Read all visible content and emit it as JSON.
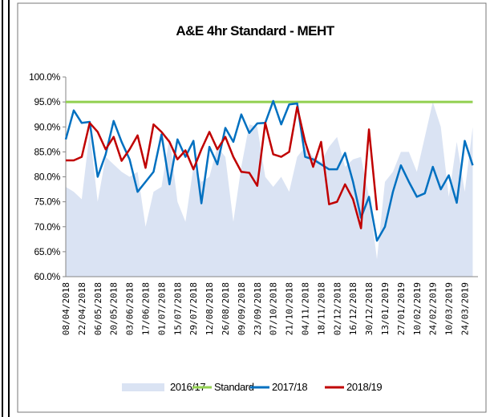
{
  "chart_data": {
    "type": "line",
    "title": "A&E 4hr Standard - MEHT",
    "categories": [
      "08/04/2018",
      null,
      "22/04/2018",
      null,
      "06/05/2018",
      null,
      "20/05/2018",
      null,
      "03/06/2018",
      null,
      "17/06/2018",
      null,
      "01/07/2018",
      null,
      "15/07/2018",
      null,
      "29/07/2018",
      null,
      "12/08/2018",
      null,
      "26/08/2018",
      null,
      "09/09/2018",
      null,
      "23/09/2018",
      null,
      "07/10/2018",
      null,
      "21/10/2018",
      null,
      "04/11/2018",
      null,
      "18/11/2018",
      null,
      "02/12/2018",
      null,
      "16/12/2018",
      null,
      "30/12/2018",
      null,
      "13/01/2019",
      null,
      "27/01/2019",
      null,
      "10/02/2019",
      null,
      "24/02/2019",
      null,
      "10/03/2019",
      null,
      "24/03/2019",
      null
    ],
    "ylim": [
      60,
      100
    ],
    "yticks": [
      {
        "value": 60,
        "label": "60.0%"
      },
      {
        "value": 65,
        "label": "65.0%"
      },
      {
        "value": 70,
        "label": "70.0%"
      },
      {
        "value": 75,
        "label": "75.0%"
      },
      {
        "value": 80,
        "label": "80.0%"
      },
      {
        "value": 85,
        "label": "85.0%"
      },
      {
        "value": 90,
        "label": "90.0%"
      },
      {
        "value": 95,
        "label": "95.0%"
      },
      {
        "value": 100,
        "label": "100.0%"
      }
    ],
    "legend": "bottom",
    "series": [
      {
        "name": "2016/17",
        "kind": "area",
        "color": "#dae3f3",
        "values": [
          78,
          77,
          75.5,
          89,
          75,
          84,
          82.5,
          81,
          80,
          81,
          70,
          77,
          78,
          88,
          75,
          71,
          82,
          79,
          80,
          86,
          84,
          71,
          82,
          90.5,
          90,
          80,
          78,
          80,
          77,
          84,
          86,
          84,
          83,
          86,
          88,
          82,
          83.5,
          84,
          76,
          63.5,
          79,
          81,
          85,
          85,
          81,
          88,
          95,
          90,
          76,
          87,
          77,
          90
        ]
      },
      {
        "name": "Standard",
        "kind": "line",
        "color": "#92d050",
        "values": [
          95,
          95,
          95,
          95,
          95,
          95,
          95,
          95,
          95,
          95,
          95,
          95,
          95,
          95,
          95,
          95,
          95,
          95,
          95,
          95,
          95,
          95,
          95,
          95,
          95,
          95,
          95,
          95,
          95,
          95,
          95,
          95,
          95,
          95,
          95,
          95,
          95,
          95,
          95,
          95,
          95,
          95,
          95,
          95,
          95,
          95,
          95,
          95,
          95,
          95,
          95,
          95
        ]
      },
      {
        "name": "2017/18",
        "kind": "line",
        "color": "#0070c0",
        "values": [
          87.5,
          93.3,
          90.8,
          91,
          80,
          84.5,
          91.2,
          87,
          83.5,
          77,
          79,
          81,
          88.5,
          78.5,
          87.5,
          84,
          87.2,
          74.7,
          86,
          82.5,
          89.8,
          87,
          92.5,
          88.8,
          90.7,
          90.8,
          95.2,
          90.5,
          94.5,
          94.7,
          84,
          83.5,
          82.5,
          81.5,
          81.5,
          84.8,
          79,
          71.8,
          76,
          67.2,
          70,
          77,
          82.3,
          79,
          76,
          76.7,
          82,
          77.5,
          80.3,
          74.8,
          87.2,
          82.3
        ]
      },
      {
        "name": "2018/19",
        "kind": "line",
        "color": "#c00000",
        "values": [
          83.3,
          83.3,
          84,
          90.8,
          89,
          85.5,
          88,
          83.2,
          85.5,
          88.3,
          81.8,
          90.5,
          89,
          87,
          83.5,
          85.3,
          81.5,
          85.5,
          89,
          85.5,
          88,
          84,
          81,
          80.8,
          78.2,
          90.8,
          84.5,
          84,
          85,
          94,
          87,
          82,
          87,
          74.5,
          75,
          78.5,
          75.5,
          69.7,
          89.5,
          73.3,
          null,
          null,
          null,
          null,
          null,
          null,
          null,
          null,
          null,
          null,
          null,
          null
        ]
      }
    ]
  }
}
